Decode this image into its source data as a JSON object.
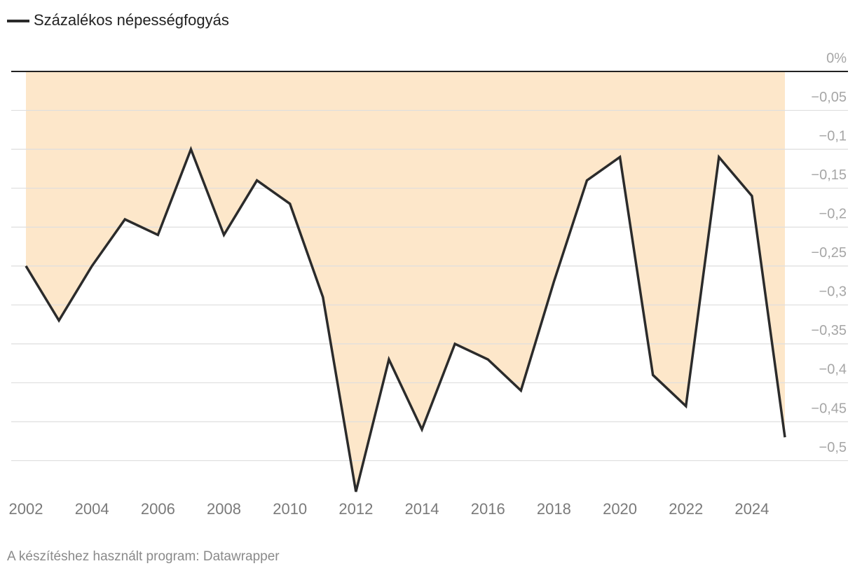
{
  "chart_data": {
    "type": "area",
    "legend_position": "top-left",
    "footer": "A készítéshez használt program: Datawrapper",
    "x": [
      2002,
      2003,
      2004,
      2005,
      2006,
      2007,
      2008,
      2009,
      2010,
      2011,
      2012,
      2013,
      2014,
      2015,
      2016,
      2017,
      2018,
      2019,
      2020,
      2021,
      2022,
      2023,
      2024,
      2025
    ],
    "series": [
      {
        "name": "Százalékos népességfogyás",
        "color": "#2b2b2b",
        "fill_color": "#fde7ca",
        "values": [
          -0.25,
          -0.32,
          -0.25,
          -0.19,
          -0.21,
          -0.1,
          -0.21,
          -0.14,
          -0.17,
          -0.29,
          -0.54,
          -0.37,
          -0.46,
          -0.35,
          -0.37,
          -0.41,
          -0.27,
          -0.14,
          -0.11,
          -0.39,
          -0.43,
          -0.11,
          -0.16,
          -0.47
        ]
      }
    ],
    "xlim": [
      2002,
      2025
    ],
    "xticks": [
      2002,
      2004,
      2006,
      2008,
      2010,
      2012,
      2014,
      2016,
      2018,
      2020,
      2022,
      2024
    ],
    "ylim": [
      -0.54,
      0
    ],
    "yticks": [
      {
        "value": 0,
        "label": "0%"
      },
      {
        "value": -0.05,
        "label": "−0,05"
      },
      {
        "value": -0.1,
        "label": "−0,1"
      },
      {
        "value": -0.15,
        "label": "−0,15"
      },
      {
        "value": -0.2,
        "label": "−0,2"
      },
      {
        "value": -0.25,
        "label": "−0,25"
      },
      {
        "value": -0.3,
        "label": "−0,3"
      },
      {
        "value": -0.35,
        "label": "−0,35"
      },
      {
        "value": -0.4,
        "label": "−0,4"
      },
      {
        "value": -0.45,
        "label": "−0,45"
      },
      {
        "value": -0.5,
        "label": "−0,5"
      }
    ],
    "grid": true
  }
}
